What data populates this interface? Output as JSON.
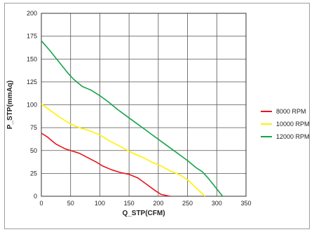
{
  "chart_data": {
    "type": "line",
    "xlabel": "Q_STP(CFM)",
    "ylabel": "P_STP(mmAq)",
    "xlim": [
      0,
      350
    ],
    "ylim": [
      0,
      200
    ],
    "x_ticks": [
      0,
      50,
      100,
      150,
      200,
      250,
      300,
      350
    ],
    "y_ticks": [
      0,
      25,
      50,
      75,
      100,
      125,
      150,
      175,
      200
    ],
    "grid": true,
    "legend_position": "right",
    "series": [
      {
        "name": "8000 RPM",
        "color": "#e8141a",
        "points": [
          [
            0,
            69
          ],
          [
            10,
            65
          ],
          [
            25,
            57
          ],
          [
            40,
            52
          ],
          [
            50,
            50
          ],
          [
            65,
            47
          ],
          [
            80,
            42
          ],
          [
            95,
            37
          ],
          [
            105,
            33
          ],
          [
            120,
            29
          ],
          [
            135,
            26
          ],
          [
            150,
            24
          ],
          [
            165,
            20
          ],
          [
            180,
            13
          ],
          [
            195,
            6
          ],
          [
            205,
            2
          ],
          [
            220,
            0
          ]
        ]
      },
      {
        "name": "10000 RPM",
        "color": "#fff200",
        "points": [
          [
            0,
            101
          ],
          [
            15,
            94
          ],
          [
            30,
            87
          ],
          [
            50,
            79
          ],
          [
            65,
            75
          ],
          [
            85,
            71
          ],
          [
            100,
            67
          ],
          [
            115,
            61
          ],
          [
            130,
            56
          ],
          [
            145,
            51
          ],
          [
            160,
            46
          ],
          [
            175,
            42
          ],
          [
            190,
            37
          ],
          [
            205,
            33
          ],
          [
            220,
            28
          ],
          [
            235,
            24
          ],
          [
            250,
            18
          ],
          [
            265,
            9
          ],
          [
            280,
            0
          ]
        ]
      },
      {
        "name": "12000 RPM",
        "color": "#16a34a",
        "points": [
          [
            0,
            170
          ],
          [
            15,
            159
          ],
          [
            30,
            147
          ],
          [
            45,
            135
          ],
          [
            55,
            128
          ],
          [
            70,
            120
          ],
          [
            85,
            116
          ],
          [
            100,
            110
          ],
          [
            115,
            103
          ],
          [
            130,
            95
          ],
          [
            145,
            88
          ],
          [
            160,
            81
          ],
          [
            175,
            74
          ],
          [
            190,
            67
          ],
          [
            205,
            60
          ],
          [
            220,
            53
          ],
          [
            235,
            46
          ],
          [
            250,
            39
          ],
          [
            265,
            31
          ],
          [
            275,
            27
          ],
          [
            285,
            20
          ],
          [
            295,
            12
          ],
          [
            310,
            0
          ]
        ]
      }
    ]
  }
}
